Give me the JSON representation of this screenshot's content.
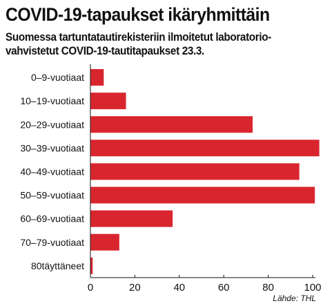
{
  "chart_data": {
    "type": "bar",
    "orientation": "horizontal",
    "title": "COVID-19-tapaukset ikäryhmittäin",
    "subtitle_lines": [
      "Suomessa tartuntatautirekisteriin ilmoitetut laboratorio-",
      "vahvistetut COVID-19-tautitapaukset 23.3."
    ],
    "categories": [
      "0–9-vuotiaat",
      "10–19-vuotiaat",
      "20–29-vuotiaat",
      "30–39-vuotiaat",
      "40–49-vuotiaat",
      "50–59-vuotiaat",
      "60–69-vuotiaat",
      "70–79-vuotiaat",
      "80täyttäneet"
    ],
    "values": [
      6,
      16,
      73,
      103,
      94,
      101,
      37,
      13,
      1
    ],
    "xlim": [
      0,
      100
    ],
    "xticks": [
      0,
      20,
      40,
      60,
      80,
      100
    ],
    "xgrid": false,
    "bar_color": "#d9262e",
    "source": "Lähde: THL"
  }
}
